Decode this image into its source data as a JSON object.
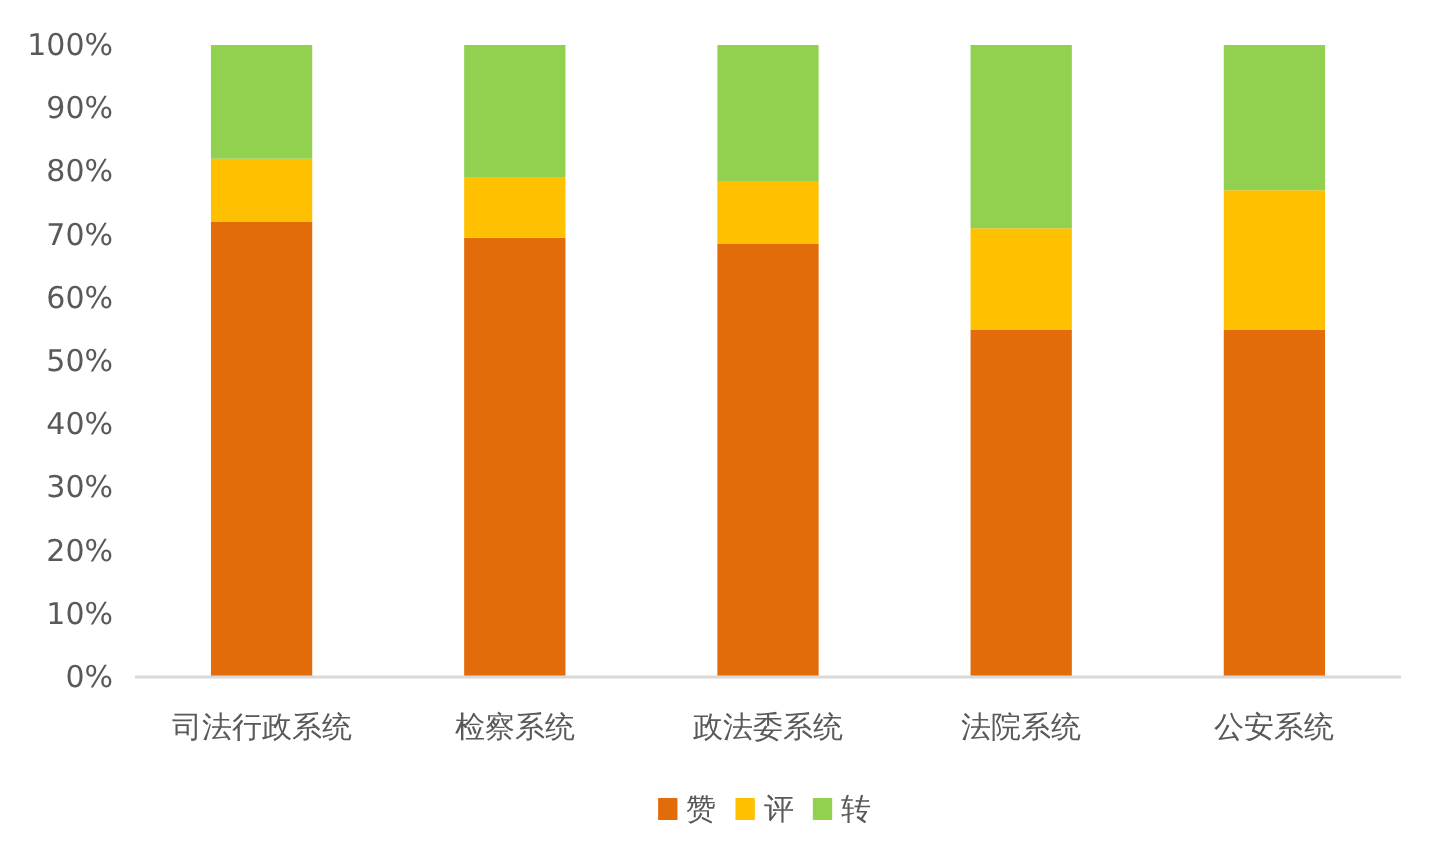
{
  "chart_data": {
    "type": "bar",
    "stacked": true,
    "categories": [
      "司法行政系统",
      "检察系统",
      "政法委系统",
      "法院系统",
      "公安系统"
    ],
    "series": [
      {
        "name": "赞",
        "color": "#e36c0a",
        "values": [
          72,
          69.5,
          68.5,
          55,
          55
        ]
      },
      {
        "name": "评",
        "color": "#ffc000",
        "values": [
          10,
          9.5,
          10,
          16,
          22
        ]
      },
      {
        "name": "转",
        "color": "#92d050",
        "values": [
          18,
          21,
          21.5,
          29,
          23
        ]
      }
    ],
    "ylim": [
      0,
      100
    ],
    "yticks": [
      {
        "value": 0,
        "label": "0%"
      },
      {
        "value": 10,
        "label": "10%"
      },
      {
        "value": 20,
        "label": "20%"
      },
      {
        "value": 30,
        "label": "30%"
      },
      {
        "value": 40,
        "label": "40%"
      },
      {
        "value": 50,
        "label": "50%"
      },
      {
        "value": 60,
        "label": "60%"
      },
      {
        "value": 70,
        "label": "70%"
      },
      {
        "value": 80,
        "label": "80%"
      },
      {
        "value": 90,
        "label": "90%"
      },
      {
        "value": 100,
        "label": "100%"
      }
    ],
    "legend": "bottom"
  }
}
